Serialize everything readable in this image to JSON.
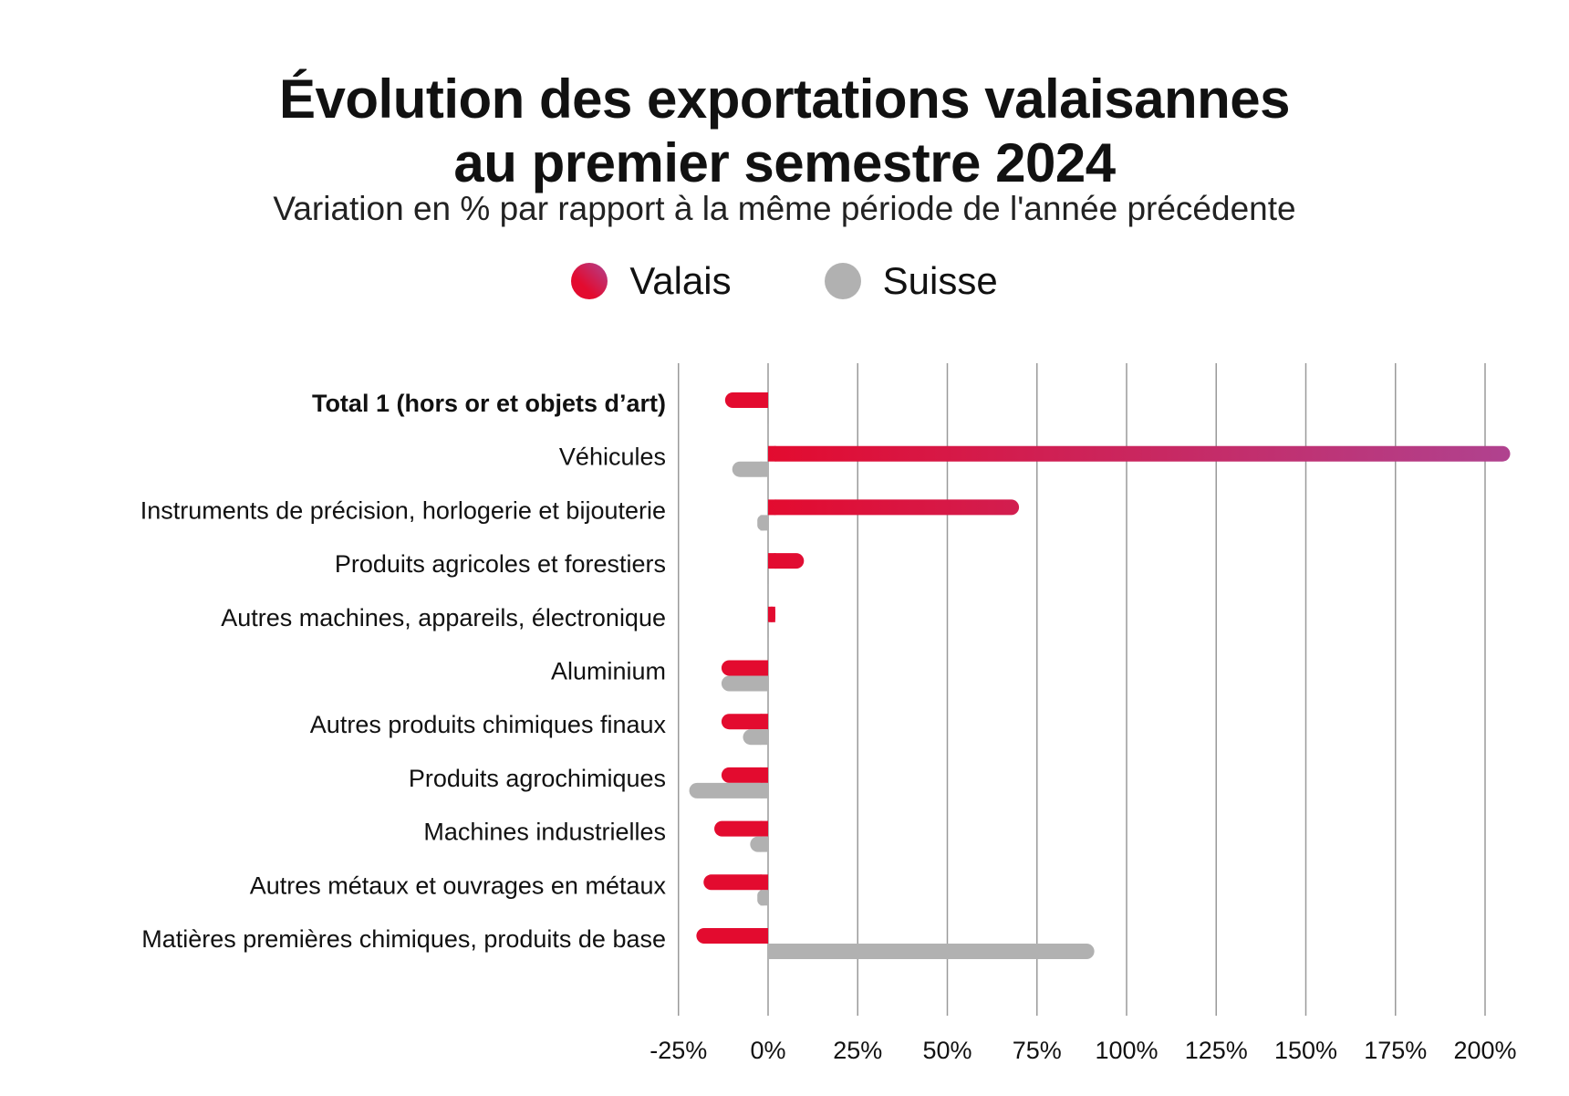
{
  "title_line1": "Évolution des exportations valaisannes",
  "title_line2": "au premier semestre 2024",
  "subtitle": "Variation en % par rapport à la même période de l'année précédente",
  "legend": [
    {
      "name": "Valais",
      "color": "#e30b2f",
      "color_end": "#b0428f"
    },
    {
      "name": "Suisse",
      "color": "#b1b1b1"
    }
  ],
  "chart_data": {
    "type": "bar",
    "orientation": "horizontal",
    "categories": [
      "Total 1 (hors or et objets d’art)",
      "Véhicules",
      "Instruments de précision, horlogerie et bijouterie",
      "Produits agricoles et forestiers",
      "Autres machines, appareils, électronique",
      "Aluminium",
      "Autres produits chimiques finaux",
      "Produits agrochimiques",
      "Machines industrielles",
      "Autres métaux et ouvrages en métaux",
      "Matières premières chimiques, produits de base"
    ],
    "bold_categories": [
      0
    ],
    "series": [
      {
        "name": "Valais",
        "values": [
          -12,
          207,
          70,
          10,
          2,
          -13,
          -13,
          -13,
          -15,
          -18,
          -20
        ]
      },
      {
        "name": "Suisse",
        "values": [
          0.5,
          -10,
          -3,
          0.5,
          0.5,
          -13,
          -7,
          -22,
          -5,
          -3,
          91
        ]
      }
    ],
    "xlim": [
      -25,
      210
    ],
    "xticks": [
      -25,
      0,
      25,
      50,
      75,
      100,
      125,
      150,
      175,
      200
    ],
    "xtick_labels": [
      "-25%",
      "0%",
      "25%",
      "50%",
      "75%",
      "100%",
      "125%",
      "150%",
      "175%",
      "200%"
    ],
    "grid": true,
    "legend_position": "top-center"
  }
}
